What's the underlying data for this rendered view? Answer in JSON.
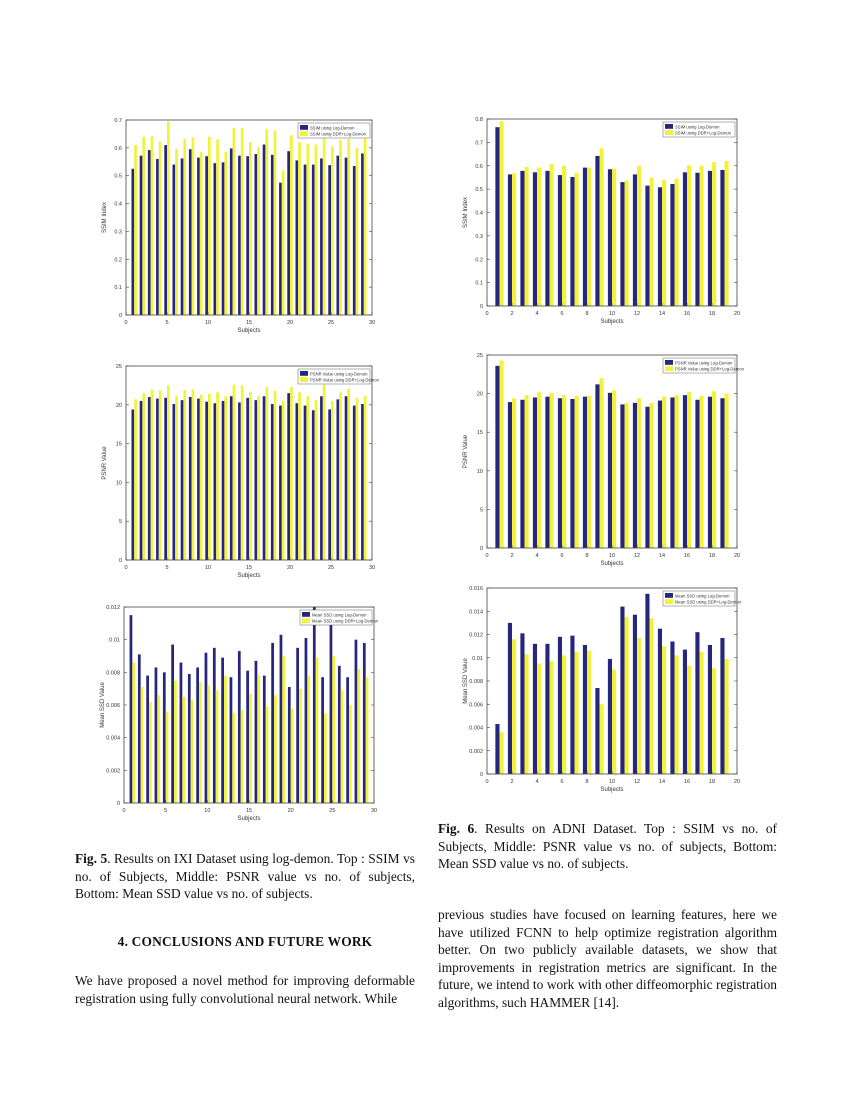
{
  "colors": {
    "series1": "#26267c",
    "series2": "#f2f23a"
  },
  "chart_data": [
    {
      "id": "ixi-ssim",
      "type": "bar",
      "title": "",
      "xlabel": "Subjects",
      "ylabel": "SSIM Index",
      "xlim": [
        0,
        30
      ],
      "xticks": [
        0,
        5,
        10,
        15,
        20,
        25,
        30
      ],
      "ylim": [
        0,
        0.7
      ],
      "yticks": [
        0,
        0.1,
        0.2,
        0.3,
        0.4,
        0.5,
        0.6,
        0.7
      ],
      "grid": false,
      "legend": "top-right",
      "categories": [
        1,
        2,
        3,
        4,
        5,
        6,
        7,
        8,
        9,
        10,
        11,
        12,
        13,
        14,
        15,
        16,
        17,
        18,
        19,
        20,
        21,
        22,
        23,
        24,
        25,
        26,
        27,
        28,
        29
      ],
      "series": [
        {
          "name": "SSIM using Log-Demon",
          "values": [
            0.525,
            0.572,
            0.592,
            0.56,
            0.61,
            0.54,
            0.562,
            0.595,
            0.565,
            0.57,
            0.545,
            0.548,
            0.598,
            0.572,
            0.57,
            0.578,
            0.612,
            0.575,
            0.475,
            0.588,
            0.555,
            0.54,
            0.54,
            0.562,
            0.538,
            0.572,
            0.565,
            0.535,
            0.58
          ]
        },
        {
          "name": "SSIM using DDR+Log-Demon",
          "values": [
            0.61,
            0.64,
            0.642,
            0.622,
            0.695,
            0.597,
            0.632,
            0.638,
            0.585,
            0.64,
            0.63,
            0.585,
            0.672,
            0.672,
            0.622,
            0.602,
            0.668,
            0.662,
            0.518,
            0.645,
            0.62,
            0.615,
            0.612,
            0.64,
            0.605,
            0.628,
            0.632,
            0.6,
            0.635
          ]
        }
      ]
    },
    {
      "id": "ixi-psnr",
      "type": "bar",
      "title": "",
      "xlabel": "Subjects",
      "ylabel": "PSNR Value",
      "xlim": [
        0,
        30
      ],
      "xticks": [
        0,
        5,
        10,
        15,
        20,
        25,
        30
      ],
      "ylim": [
        0,
        25
      ],
      "yticks": [
        0,
        5,
        10,
        15,
        20,
        25
      ],
      "grid": false,
      "legend": "top-right",
      "categories": [
        1,
        2,
        3,
        4,
        5,
        6,
        7,
        8,
        9,
        10,
        11,
        12,
        13,
        14,
        15,
        16,
        17,
        18,
        19,
        20,
        21,
        22,
        23,
        24,
        25,
        26,
        27,
        28,
        29
      ],
      "series": [
        {
          "name": "PSNR Value using Log-Demon",
          "values": [
            19.4,
            20.5,
            21.0,
            20.8,
            20.9,
            20.1,
            20.6,
            21.0,
            20.8,
            20.4,
            20.2,
            20.5,
            21.1,
            20.3,
            20.9,
            20.6,
            21.1,
            20.1,
            19.9,
            21.5,
            20.2,
            19.9,
            19.3,
            21.1,
            19.4,
            20.7,
            21.1,
            19.9,
            20.1
          ]
        },
        {
          "name": "PSNR Value using DDR+Log-Demon",
          "values": [
            20.7,
            21.5,
            22.0,
            21.8,
            22.5,
            21.2,
            21.9,
            22.0,
            21.3,
            21.4,
            21.6,
            21.1,
            22.6,
            22.5,
            21.7,
            21.1,
            22.3,
            21.8,
            20.5,
            22.3,
            21.6,
            21.1,
            20.6,
            22.6,
            20.5,
            21.6,
            22.1,
            20.9,
            21.2
          ]
        }
      ]
    },
    {
      "id": "ixi-ssd",
      "type": "bar",
      "title": "",
      "xlabel": "Subjects",
      "ylabel": "Mean SSD Value",
      "xlim": [
        0,
        30
      ],
      "xticks": [
        0,
        5,
        10,
        15,
        20,
        25,
        30
      ],
      "ylim": [
        0,
        0.012
      ],
      "yticks": [
        0,
        0.002,
        0.004,
        0.006,
        0.008,
        0.01,
        0.012
      ],
      "grid": false,
      "legend": "top-right",
      "categories": [
        1,
        2,
        3,
        4,
        5,
        6,
        7,
        8,
        9,
        10,
        11,
        12,
        13,
        14,
        15,
        16,
        17,
        18,
        19,
        20,
        21,
        22,
        23,
        24,
        25,
        26,
        27,
        28,
        29
      ],
      "series": [
        {
          "name": "Mean SSD using Log-Demon",
          "values": [
            0.0115,
            0.0091,
            0.0078,
            0.0083,
            0.008,
            0.0097,
            0.0086,
            0.0079,
            0.0083,
            0.0092,
            0.0095,
            0.0089,
            0.0077,
            0.0093,
            0.0081,
            0.0087,
            0.0078,
            0.0098,
            0.0103,
            0.0071,
            0.0095,
            0.0101,
            0.012,
            0.0077,
            0.0113,
            0.0084,
            0.0077,
            0.01,
            0.0098
          ]
        },
        {
          "name": "Mean SSD using DDR+Log-Demon",
          "values": [
            0.0086,
            0.0071,
            0.0062,
            0.0066,
            0.0056,
            0.0075,
            0.0065,
            0.0063,
            0.0074,
            0.0072,
            0.0069,
            0.0078,
            0.0055,
            0.0057,
            0.0067,
            0.0078,
            0.0059,
            0.0066,
            0.009,
            0.0058,
            0.007,
            0.0078,
            0.0089,
            0.0055,
            0.009,
            0.0069,
            0.006,
            0.0082,
            0.0077
          ]
        }
      ]
    },
    {
      "id": "adni-ssim",
      "type": "bar",
      "title": "",
      "xlabel": "Subjects",
      "ylabel": "SSIM Index",
      "xlim": [
        0,
        20
      ],
      "xticks": [
        0,
        2,
        4,
        6,
        8,
        10,
        12,
        14,
        16,
        18,
        20
      ],
      "ylim": [
        0,
        0.8
      ],
      "yticks": [
        0,
        0.1,
        0.2,
        0.3,
        0.4,
        0.5,
        0.6,
        0.7,
        0.8
      ],
      "grid": false,
      "legend": "top-right",
      "categories": [
        1,
        2,
        3,
        4,
        5,
        6,
        7,
        8,
        9,
        10,
        11,
        12,
        13,
        14,
        15,
        16,
        17,
        18,
        19
      ],
      "series": [
        {
          "name": "SSIM using Log-Demon",
          "values": [
            0.765,
            0.563,
            0.578,
            0.572,
            0.578,
            0.56,
            0.552,
            0.592,
            0.642,
            0.585,
            0.53,
            0.563,
            0.515,
            0.508,
            0.522,
            0.572,
            0.57,
            0.578,
            0.582
          ]
        },
        {
          "name": "SSIM using DDR+Log-Demon",
          "values": [
            0.79,
            0.568,
            0.595,
            0.592,
            0.608,
            0.6,
            0.57,
            0.592,
            0.675,
            0.588,
            0.538,
            0.6,
            0.55,
            0.538,
            0.545,
            0.602,
            0.6,
            0.615,
            0.62
          ]
        }
      ]
    },
    {
      "id": "adni-psnr",
      "type": "bar",
      "title": "",
      "xlabel": "Subjects",
      "ylabel": "PSNR Value",
      "xlim": [
        0,
        20
      ],
      "xticks": [
        0,
        2,
        4,
        6,
        8,
        10,
        12,
        14,
        16,
        18,
        20
      ],
      "ylim": [
        0,
        25
      ],
      "yticks": [
        0,
        5,
        10,
        15,
        20,
        25
      ],
      "grid": false,
      "legend": "top-right",
      "categories": [
        1,
        2,
        3,
        4,
        5,
        6,
        7,
        8,
        9,
        10,
        11,
        12,
        13,
        14,
        15,
        16,
        17,
        18,
        19
      ],
      "series": [
        {
          "name": "PSNR Value using Log-Demon",
          "values": [
            23.6,
            18.9,
            19.2,
            19.5,
            19.6,
            19.4,
            19.3,
            19.6,
            21.2,
            20.1,
            18.6,
            18.8,
            18.3,
            19.1,
            19.5,
            19.8,
            19.2,
            19.6,
            19.4
          ]
        },
        {
          "name": "PSNR Value using DDR+Log-Demon",
          "values": [
            24.3,
            19.4,
            19.8,
            20.2,
            20.1,
            19.8,
            19.7,
            19.7,
            22.0,
            20.4,
            18.8,
            19.4,
            18.8,
            19.6,
            19.8,
            20.2,
            19.7,
            20.3,
            20.0
          ]
        }
      ]
    },
    {
      "id": "adni-ssd",
      "type": "bar",
      "title": "",
      "xlabel": "Subjects",
      "ylabel": "Mean SSD Value",
      "xlim": [
        0,
        20
      ],
      "xticks": [
        0,
        2,
        4,
        6,
        8,
        10,
        12,
        14,
        16,
        18,
        20
      ],
      "ylim": [
        0,
        0.016
      ],
      "yticks": [
        0,
        0.002,
        0.004,
        0.006,
        0.008,
        0.01,
        0.012,
        0.014,
        0.016
      ],
      "grid": false,
      "legend": "top-right",
      "categories": [
        1,
        2,
        3,
        4,
        5,
        6,
        7,
        8,
        9,
        10,
        11,
        12,
        13,
        14,
        15,
        16,
        17,
        18,
        19
      ],
      "series": [
        {
          "name": "Mean SSD using Log-Demon",
          "values": [
            0.0043,
            0.013,
            0.0121,
            0.0112,
            0.0112,
            0.0118,
            0.0119,
            0.0111,
            0.0074,
            0.0099,
            0.0144,
            0.0137,
            0.0155,
            0.0125,
            0.0114,
            0.0107,
            0.0122,
            0.0111,
            0.0117
          ]
        },
        {
          "name": "Mean SSD using DDR+Log-Demon",
          "values": [
            0.0036,
            0.0116,
            0.0103,
            0.0095,
            0.0097,
            0.0102,
            0.0105,
            0.0106,
            0.006,
            0.009,
            0.0135,
            0.0117,
            0.0134,
            0.011,
            0.0102,
            0.0093,
            0.0105,
            0.0091,
            0.0099
          ]
        }
      ]
    }
  ],
  "fig5": {
    "label": "Fig. 5",
    "caption": ". Results on IXI Dataset using log-demon. Top : SSIM vs no. of Subjects, Middle: PSNR value vs no. of subjects, Bottom: Mean SSD value vs no. of subjects."
  },
  "fig6": {
    "label": "Fig. 6",
    "caption": ". Results on ADNI Dataset. Top : SSIM vs no. of Subjects, Middle: PSNR value vs no. of subjects, Bottom: Mean SSD value vs no. of subjects."
  },
  "section": {
    "heading": "4. CONCLUSIONS AND FUTURE WORK"
  },
  "paragraph_left": "We have proposed a novel method for improving deformable registration using fully convolutional neural network. While",
  "paragraph_right": "previous studies have focused on learning features, here we have utilized FCNN to help optimize registration algorithm better. On two publicly available datasets, we show that improvements in registration metrics are significant. In the future, we intend to work with other diffeomorphic registration algorithms, such HAMMER [14]."
}
